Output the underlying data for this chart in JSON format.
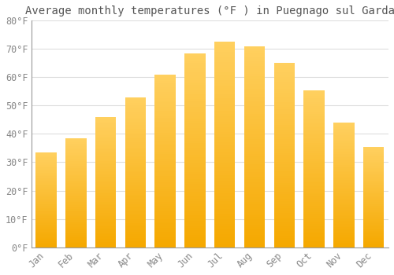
{
  "title": "Average monthly temperatures (°F ) in Puegnago sul Garda",
  "months": [
    "Jan",
    "Feb",
    "Mar",
    "Apr",
    "May",
    "Jun",
    "Jul",
    "Aug",
    "Sep",
    "Oct",
    "Nov",
    "Dec"
  ],
  "values": [
    33.5,
    38.5,
    46.0,
    53.0,
    61.0,
    68.5,
    72.5,
    71.0,
    65.0,
    55.5,
    44.0,
    35.5
  ],
  "bar_color_bottom": "#F5A800",
  "bar_color_top": "#FFD060",
  "background_color": "#FFFFFF",
  "plot_bg_color": "#FFFFFF",
  "grid_color": "#DDDDDD",
  "text_color": "#888888",
  "title_color": "#555555",
  "ylim": [
    0,
    80
  ],
  "yticks": [
    0,
    10,
    20,
    30,
    40,
    50,
    60,
    70,
    80
  ],
  "ytick_labels": [
    "0°F",
    "10°F",
    "20°F",
    "30°F",
    "40°F",
    "50°F",
    "60°F",
    "70°F",
    "80°F"
  ],
  "title_fontsize": 10,
  "tick_fontsize": 8.5,
  "font_family": "monospace",
  "bar_width": 0.7,
  "n_grad": 80
}
